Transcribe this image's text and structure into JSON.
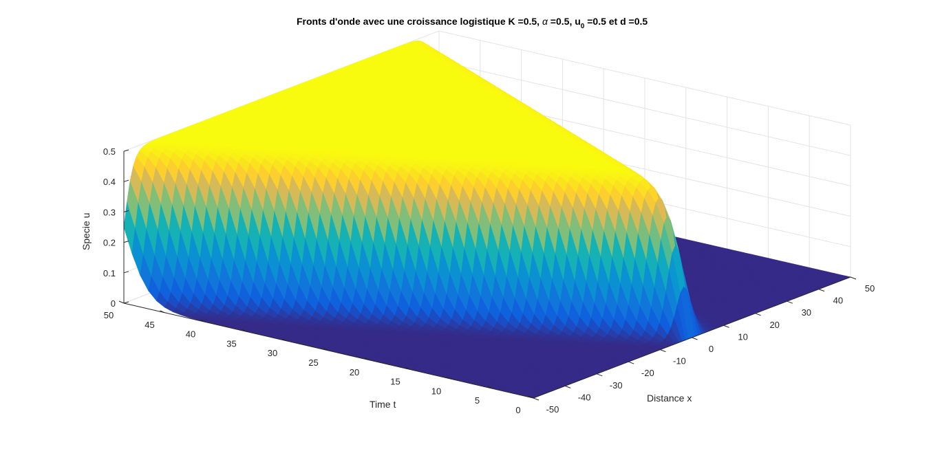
{
  "chart_data": {
    "type": "surface",
    "title": {
      "prefix": "Fronts d'onde avec une croissance logistique K =0.5, ",
      "alpha_symbol": "α",
      "alpha_part": " =0.5, u",
      "subscript": "0",
      "suffix": " =0.5 et d =0.5"
    },
    "xlabel": "Distance x",
    "ylabel": "Time t",
    "zlabel": "Specie u",
    "xlim": [
      -50,
      50
    ],
    "ylim": [
      0,
      50
    ],
    "zlim": [
      0,
      0.5
    ],
    "x_ticks": [
      "-50",
      "-40",
      "-30",
      "-20",
      "-10",
      "0",
      "10",
      "20",
      "30",
      "40",
      "50"
    ],
    "y_ticks": [
      "0",
      "5",
      "10",
      "15",
      "20",
      "25",
      "30",
      "35",
      "40",
      "45",
      "50"
    ],
    "z_ticks": [
      "0",
      "0.1",
      "0.2",
      "0.3",
      "0.4",
      "0.5"
    ],
    "grid": true,
    "colormap": "parula",
    "surface_description": {
      "plateau_value": 0.5,
      "front_speed": 1.0,
      "front_width": 1.5,
      "initial_bump_value": 0.5
    },
    "colors": {
      "low": "#352a87",
      "mid_low": "#0f5cdd",
      "mid": "#12b1c6",
      "mid_high": "#7ebc78",
      "high_mid": "#fdbc3c",
      "high": "#f9fb0e"
    }
  }
}
